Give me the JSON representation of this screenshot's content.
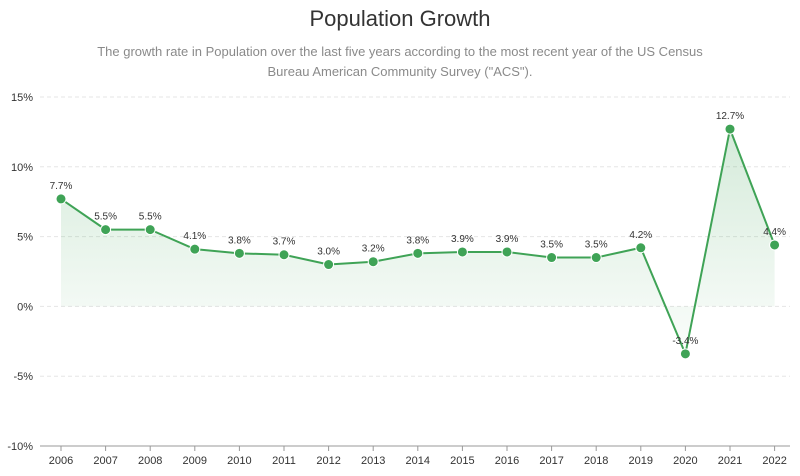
{
  "chart_data": {
    "type": "area",
    "title": "Population Growth",
    "subtitle": "The growth rate in Population over the last five years according to the most recent year of the US Census Bureau American Community Survey (\"ACS\").",
    "xlabel": "",
    "ylabel": "",
    "ylim": [
      -10,
      15
    ],
    "yticks": [
      15,
      10,
      5,
      0,
      -5,
      -10
    ],
    "ytick_labels": [
      "15%",
      "10%",
      "5%",
      "0%",
      "-5%",
      "-10%"
    ],
    "grid": true,
    "categories": [
      "2006",
      "2007",
      "2008",
      "2009",
      "2010",
      "2011",
      "2012",
      "2013",
      "2014",
      "2015",
      "2016",
      "2017",
      "2018",
      "2019",
      "2020",
      "2021",
      "2022"
    ],
    "values": [
      7.7,
      5.5,
      5.5,
      4.1,
      3.8,
      3.7,
      3.0,
      3.2,
      3.8,
      3.9,
      3.9,
      3.5,
      3.5,
      4.2,
      -3.4,
      12.7,
      4.4
    ],
    "data_labels": [
      "7.7%",
      "5.5%",
      "5.5%",
      "4.1%",
      "3.8%",
      "3.7%",
      "3.0%",
      "3.2%",
      "3.8%",
      "3.9%",
      "3.9%",
      "3.5%",
      "3.5%",
      "4.2%",
      "-3.4%",
      "12.7%",
      "4.4%"
    ],
    "colors": {
      "line": "#3fa356",
      "marker": "#3fa356",
      "fill": "#3fa356",
      "grid": "#e5e5e5",
      "axis": "#999999"
    }
  }
}
